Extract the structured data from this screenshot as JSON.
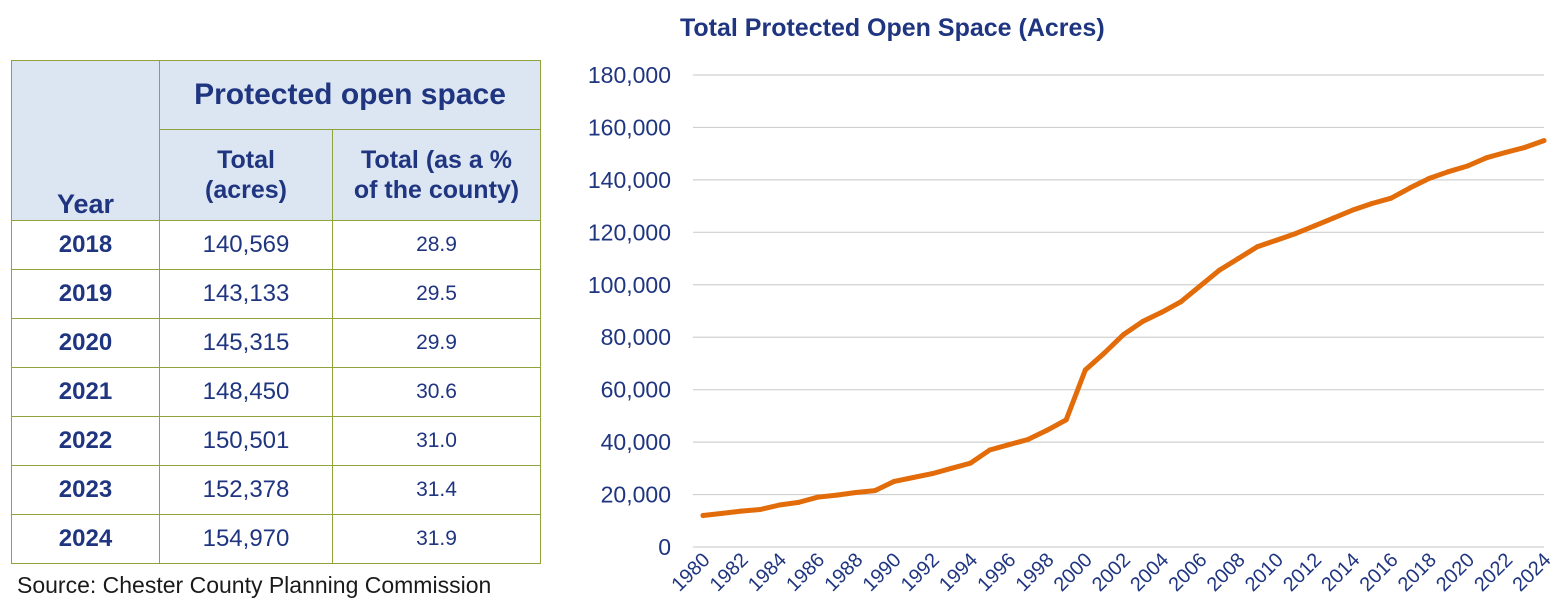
{
  "table": {
    "year_header": "Year",
    "group_header": "Protected open space",
    "col_total": [
      "Total",
      "(acres)"
    ],
    "col_pct": [
      "Total (as a %",
      "of the county)"
    ],
    "rows": [
      {
        "year": "2018",
        "total": "140,569",
        "pct": "28.9"
      },
      {
        "year": "2019",
        "total": "143,133",
        "pct": "29.5"
      },
      {
        "year": "2020",
        "total": "145,315",
        "pct": "29.9"
      },
      {
        "year": "2021",
        "total": "148,450",
        "pct": "30.6"
      },
      {
        "year": "2022",
        "total": "150,501",
        "pct": "31.0"
      },
      {
        "year": "2023",
        "total": "152,378",
        "pct": "31.4"
      },
      {
        "year": "2024",
        "total": "154,970",
        "pct": "31.9"
      }
    ]
  },
  "source": "Source: Chester County Planning Commission",
  "colors": {
    "line": "#e36c0a",
    "text": "#1f3580",
    "grid": "#d0d0d0",
    "header_bg": "#dce6f2",
    "border": "#8ea33a"
  },
  "chart_data": {
    "type": "line",
    "title": "Total Protected Open Space (Acres)",
    "xlabel": "",
    "ylabel": "",
    "ylim": [
      0,
      180000
    ],
    "y_ticks": [
      "0",
      "20,000",
      "40,000",
      "60,000",
      "80,000",
      "100,000",
      "120,000",
      "140,000",
      "160,000",
      "180,000"
    ],
    "x_ticks": [
      "1980",
      "1982",
      "1984",
      "1986",
      "1988",
      "1990",
      "1992",
      "1994",
      "1996",
      "1998",
      "2000",
      "2002",
      "2004",
      "2006",
      "2008",
      "2010",
      "2012",
      "2014",
      "2016",
      "2018",
      "2020",
      "2022",
      "2024"
    ],
    "grid": true,
    "series": [
      {
        "name": "Total Protected Open Space (Acres)",
        "x": [
          1980,
          1981,
          1982,
          1983,
          1984,
          1985,
          1986,
          1987,
          1988,
          1989,
          1990,
          1991,
          1992,
          1993,
          1994,
          1995,
          1996,
          1997,
          1998,
          1999,
          2000,
          2001,
          2002,
          2003,
          2004,
          2005,
          2006,
          2007,
          2008,
          2009,
          2010,
          2011,
          2012,
          2013,
          2014,
          2015,
          2016,
          2017,
          2018,
          2019,
          2020,
          2021,
          2022,
          2023,
          2024
        ],
        "values": [
          12000,
          12800,
          13700,
          14300,
          16000,
          17000,
          19000,
          19800,
          20800,
          21500,
          25000,
          26500,
          28000,
          30000,
          32000,
          37000,
          39000,
          41000,
          44500,
          48500,
          67500,
          74000,
          81000,
          86000,
          89500,
          93500,
          99500,
          105500,
          110000,
          114500,
          117000,
          119500,
          122500,
          125500,
          128500,
          131000,
          133000,
          137000,
          140569,
          143133,
          145315,
          148450,
          150501,
          152378,
          154970
        ]
      }
    ]
  }
}
